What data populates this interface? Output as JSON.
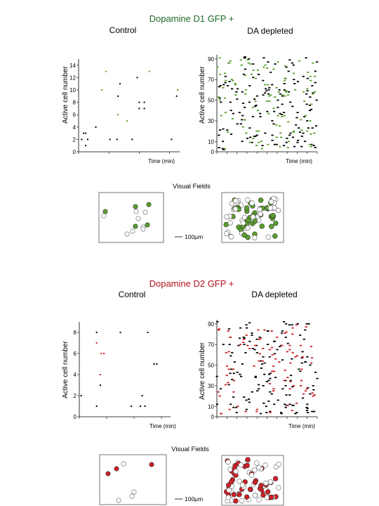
{
  "sections": [
    {
      "title": "Dopamine D1 GFP +",
      "accent": "#5aa02c",
      "columns": [
        "Control",
        "DA depleted"
      ],
      "visual_fields_label": "Visual Fields",
      "scale_bar_label": "100μm"
    },
    {
      "title": "Dopamine D2 GFP +",
      "accent": "#d01f26",
      "columns": [
        "Control",
        "DA depleted"
      ],
      "visual_fields_label": "Visual Fields",
      "scale_bar_label": "100μm"
    }
  ],
  "chart_data": [
    {
      "type": "scatter",
      "title": "Dopamine D1 GFP + — Control",
      "xlabel": "Time (min)",
      "ylabel": "Active cell number",
      "ylim": [
        0,
        15
      ],
      "yticks": [
        0,
        2,
        4,
        6,
        8,
        10,
        12,
        14
      ],
      "xlim": [
        0,
        10
      ],
      "series": [
        {
          "color": "#000000",
          "points": [
            [
              0.3,
              2
            ],
            [
              0.5,
              3
            ],
            [
              0.7,
              3
            ],
            [
              0.7,
              1
            ],
            [
              0.9,
              2
            ],
            [
              1.7,
              4
            ],
            [
              3.1,
              2
            ],
            [
              3.8,
              2
            ],
            [
              3.9,
              9
            ],
            [
              4.1,
              11
            ],
            [
              5.3,
              2
            ],
            [
              5.8,
              12
            ],
            [
              6.0,
              8
            ],
            [
              6.0,
              7
            ],
            [
              6.5,
              7
            ],
            [
              6.5,
              8
            ],
            [
              9.2,
              2
            ],
            [
              9.7,
              9
            ]
          ]
        },
        {
          "color": "#5aa02c",
          "points": [
            [
              2.3,
              10
            ],
            [
              2.7,
              13
            ],
            [
              3.9,
              6
            ],
            [
              4.8,
              5
            ],
            [
              7.0,
              13
            ],
            [
              9.8,
              10
            ]
          ]
        }
      ]
    },
    {
      "type": "scatter",
      "title": "Dopamine D1 GFP + — DA depleted",
      "xlabel": "Time (min)",
      "ylabel": "Active cell number",
      "ylim": [
        0,
        94
      ],
      "yticks": [
        0,
        10,
        30,
        50,
        70,
        90
      ],
      "xlim": [
        0,
        10
      ],
      "series": [
        {
          "color": "#000000",
          "points": []
        },
        {
          "color": "#5aa02c",
          "points": []
        }
      ],
      "note": "dense raster; points generated in script"
    },
    {
      "type": "scatter",
      "title": "Dopamine D2 GFP + — Control",
      "xlabel": "Time (min)",
      "ylabel": "Active cell number",
      "ylim": [
        0,
        9
      ],
      "yticks": [
        0,
        2,
        4,
        6,
        8
      ],
      "xlim": [
        0,
        10
      ],
      "series": [
        {
          "color": "#000000",
          "points": [
            [
              0.2,
              2
            ],
            [
              1.9,
              1
            ],
            [
              1.9,
              8
            ],
            [
              2.3,
              3
            ],
            [
              4.5,
              8
            ],
            [
              5.7,
              1
            ],
            [
              6.7,
              1
            ],
            [
              6.9,
              2
            ],
            [
              7.2,
              1
            ],
            [
              7.5,
              8
            ],
            [
              8.2,
              5
            ],
            [
              8.5,
              5
            ]
          ]
        },
        {
          "color": "#d01f26",
          "points": [
            [
              1.9,
              7
            ],
            [
              2.3,
              4
            ],
            [
              2.4,
              6
            ],
            [
              2.7,
              6
            ]
          ]
        }
      ]
    },
    {
      "type": "scatter",
      "title": "Dopamine D2 GFP + — DA depleted",
      "xlabel": "Time (min)",
      "ylabel": "Active cell number",
      "ylim": [
        0,
        94
      ],
      "yticks": [
        0,
        10,
        30,
        50,
        70,
        90
      ],
      "xlim": [
        0,
        10
      ],
      "series": [
        {
          "color": "#000000",
          "points": []
        },
        {
          "color": "#d01f26",
          "points": []
        }
      ],
      "note": "dense raster; points generated in script"
    }
  ]
}
